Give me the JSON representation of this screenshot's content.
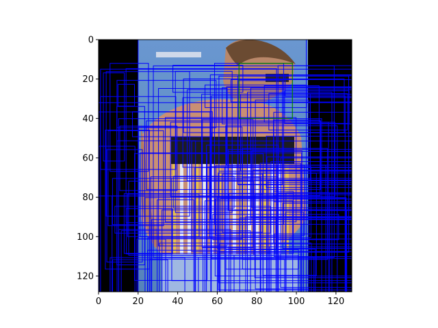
{
  "figure": {
    "background": "#ffffff"
  },
  "chart_data": {
    "type": "image-with-boxes",
    "title": "",
    "xlabel": "",
    "ylabel": "",
    "xlim": [
      0,
      128
    ],
    "ylim": [
      128,
      0
    ],
    "y_inverted": true,
    "x_ticks": [
      0,
      20,
      40,
      60,
      80,
      100,
      120
    ],
    "y_ticks": [
      0,
      20,
      40,
      60,
      80,
      100,
      120
    ],
    "grid": false,
    "legend": "none",
    "image": {
      "description": "low-resolution photo of a shirtless man leaning forward behind a barred/striped structure; sky-blue background; black padding on left and right",
      "content_x_range": [
        20,
        106
      ],
      "banner_text_visible_but_unreadable": true
    },
    "colors": {
      "box_blue": "#0000ff",
      "box_green": "#008000",
      "sky": "#5e8ec8",
      "skin": "#c98f74",
      "hair": "#6b4b32",
      "dark": "#1c1c22",
      "gold": "#e8c04b",
      "padding": "#000000"
    },
    "highlight_box": {
      "color": "green",
      "x0": 71,
      "y0": 12,
      "x1": 98,
      "y1": 40
    },
    "box_seed": 7,
    "box_count": 130
  }
}
